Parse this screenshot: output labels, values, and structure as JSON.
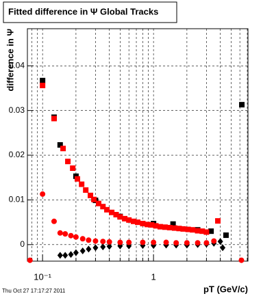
{
  "chart_data": {
    "type": "scatter",
    "title": "Fitted difference in Ψ   Global Tracks",
    "y_label": "difference in Ψ",
    "x_label": "pT (GeV/c)",
    "timestamp": "Thu Oct 27 17:17:27 2011",
    "log_x": true,
    "grid": true,
    "xlim": [
      0.073,
      7.1
    ],
    "ylim": [
      -0.0037,
      0.0483
    ],
    "xticks": [
      {
        "value": 0.1,
        "label": "10⁻¹"
      },
      1
    ],
    "xminor_ticks": [
      0.08,
      0.09,
      0.2,
      0.3,
      0.4,
      0.5,
      0.6,
      0.7,
      0.8,
      0.9,
      2,
      3,
      4,
      5,
      6,
      7
    ],
    "yticks": [
      0,
      0.01,
      0.02,
      0.03,
      0.04
    ],
    "series": [
      {
        "color": "#000000",
        "marker": "square",
        "x": [
          0.1,
          0.127,
          0.144,
          0.2,
          0.3,
          0.5,
          1.0,
          1.5,
          2.5,
          3.3,
          4.5,
          6.25
        ],
        "values": [
          0.0367,
          0.0285,
          0.0223,
          0.0153,
          0.0099,
          0.0063,
          0.0047,
          0.0046,
          0.0033,
          0.003,
          0.0021,
          0.0313
        ]
      },
      {
        "color": "#ff0000",
        "marker": "square",
        "x": [
          0.1,
          0.127,
          0.153,
          0.169,
          0.187,
          0.206,
          0.225,
          0.245,
          0.27,
          0.29,
          0.32,
          0.35,
          0.38,
          0.42,
          0.46,
          0.5,
          0.55,
          0.6,
          0.66,
          0.72,
          0.8,
          0.88,
          0.96,
          1.05,
          1.15,
          1.27,
          1.4,
          1.55,
          1.7,
          1.85,
          2.05,
          2.25,
          2.5,
          2.75,
          3.0,
          3.8
        ],
        "values": [
          0.0356,
          0.0282,
          0.0215,
          0.0186,
          0.0171,
          0.0147,
          0.0135,
          0.0122,
          0.011,
          0.0101,
          0.0092,
          0.0085,
          0.0078,
          0.0072,
          0.0067,
          0.0062,
          0.0058,
          0.0055,
          0.0052,
          0.005,
          0.0047,
          0.0045,
          0.0044,
          0.0042,
          0.004,
          0.0039,
          0.0038,
          0.0037,
          0.0036,
          0.0035,
          0.0034,
          0.0033,
          0.0031,
          0.003,
          0.0028,
          0.0053
        ]
      },
      {
        "color": "#000000",
        "marker": "diamond",
        "x": [
          0.144,
          0.16,
          0.18,
          0.2,
          0.23,
          0.26,
          0.3,
          0.35,
          0.4,
          0.5,
          0.6,
          0.8,
          1.0,
          1.3,
          1.6,
          2.0,
          2.5,
          3.0,
          3.5,
          4.0,
          4.2
        ],
        "values": [
          -0.0024,
          -0.0024,
          -0.0022,
          -0.0018,
          -0.0014,
          -0.001,
          -0.0007,
          -0.0005,
          -0.0004,
          -0.0003,
          -0.0003,
          -0.0002,
          -0.0002,
          -0.0001,
          -0.0001,
          -0.0001,
          0,
          0.0001,
          0.0003,
          0.0007,
          -0.0007
        ]
      },
      {
        "color": "#ff0000",
        "marker": "circle",
        "x": [
          0.077,
          0.1,
          0.127,
          0.144,
          0.16,
          0.18,
          0.2,
          0.23,
          0.26,
          0.3,
          0.35,
          0.4,
          0.5,
          0.6,
          0.8,
          1.0,
          1.3,
          1.6,
          2.0,
          2.5,
          3.0,
          3.5,
          6.2
        ],
        "values": [
          -0.0035,
          0.0113,
          0.0052,
          0.0026,
          0.0024,
          0.002,
          0.0017,
          0.0013,
          0.001,
          0.0008,
          0.0007,
          0.0006,
          0.0005,
          0.0005,
          0.0005,
          0.0005,
          0.0005,
          0.0004,
          0.0004,
          0.0004,
          0.0004,
          0.0008,
          -0.0035
        ]
      }
    ]
  }
}
